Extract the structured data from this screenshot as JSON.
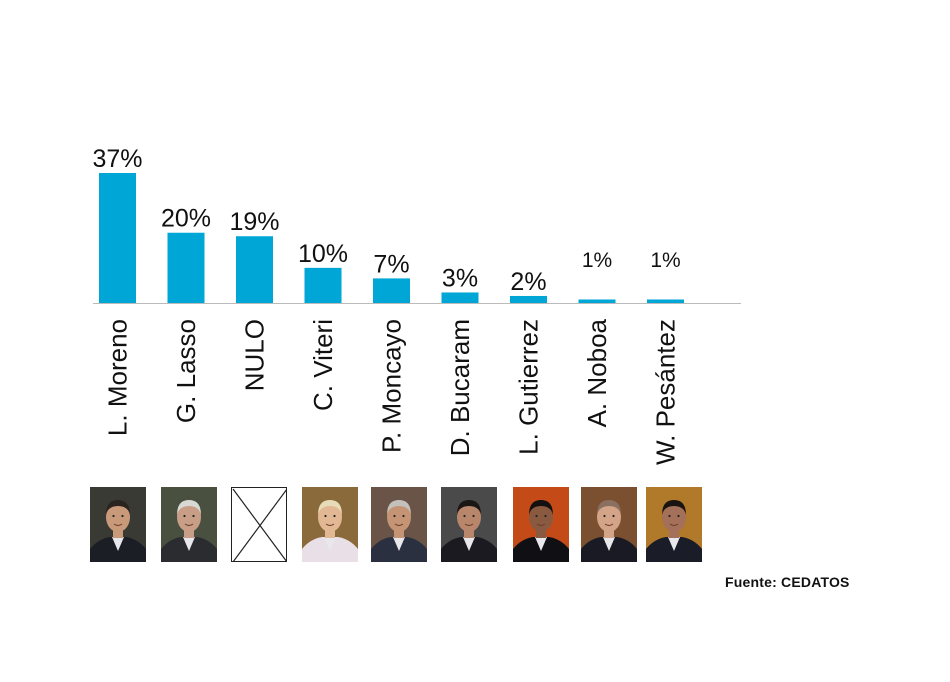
{
  "chart_data": {
    "type": "bar",
    "categories": [
      "L. Moreno",
      "G. Lasso",
      "NULO",
      "C. Viteri",
      "P. Moncayo",
      "D. Bucaram",
      "L. Gutierrez",
      "A. Noboa",
      "W. Pesántez"
    ],
    "values": [
      37,
      20,
      19,
      10,
      7,
      3,
      2,
      1,
      1
    ],
    "value_labels": [
      "37%",
      "20%",
      "19%",
      "10%",
      "7%",
      "3%",
      "2%",
      "1%",
      "1%"
    ],
    "bar_color": "#00a6d6",
    "axis_color": "#bbbbbb",
    "grid": false,
    "ylim": [
      0,
      37
    ]
  },
  "photos": [
    {
      "name": "L. Moreno",
      "kind": "portrait",
      "bg": "#3a3a34",
      "skin": "#c99a7a",
      "hair": "#2a2420",
      "suit": "#1c1e26"
    },
    {
      "name": "G. Lasso",
      "kind": "portrait",
      "bg": "#4a5040",
      "skin": "#c89e86",
      "hair": "#d8d8d4",
      "suit": "#2a2c30"
    },
    {
      "name": "NULO",
      "kind": "cross"
    },
    {
      "name": "C. Viteri",
      "kind": "portrait",
      "bg": "#8a6a3a",
      "skin": "#e2b894",
      "hair": "#e8dcb8",
      "suit": "#e8e0e6"
    },
    {
      "name": "P. Moncayo",
      "kind": "portrait",
      "bg": "#6a5448",
      "skin": "#c49474",
      "hair": "#c4c0bc",
      "suit": "#2a3040"
    },
    {
      "name": "D. Bucaram",
      "kind": "portrait",
      "bg": "#4a4a4a",
      "skin": "#b8866a",
      "hair": "#1a1614",
      "suit": "#1a1a20"
    },
    {
      "name": "L. Gutierrez",
      "kind": "portrait",
      "bg": "#c44a18",
      "skin": "#8a5a40",
      "hair": "#141010",
      "suit": "#101014"
    },
    {
      "name": "A. Noboa",
      "kind": "portrait",
      "bg": "#7a5030",
      "skin": "#d4a488",
      "hair": "#8a7060",
      "suit": "#1a1a24"
    },
    {
      "name": "W. Pesántez",
      "kind": "portrait",
      "bg": "#b07a2a",
      "skin": "#a4705a",
      "hair": "#1a1410",
      "suit": "#1a1c28"
    }
  ],
  "source": "Fuente: CEDATOS"
}
